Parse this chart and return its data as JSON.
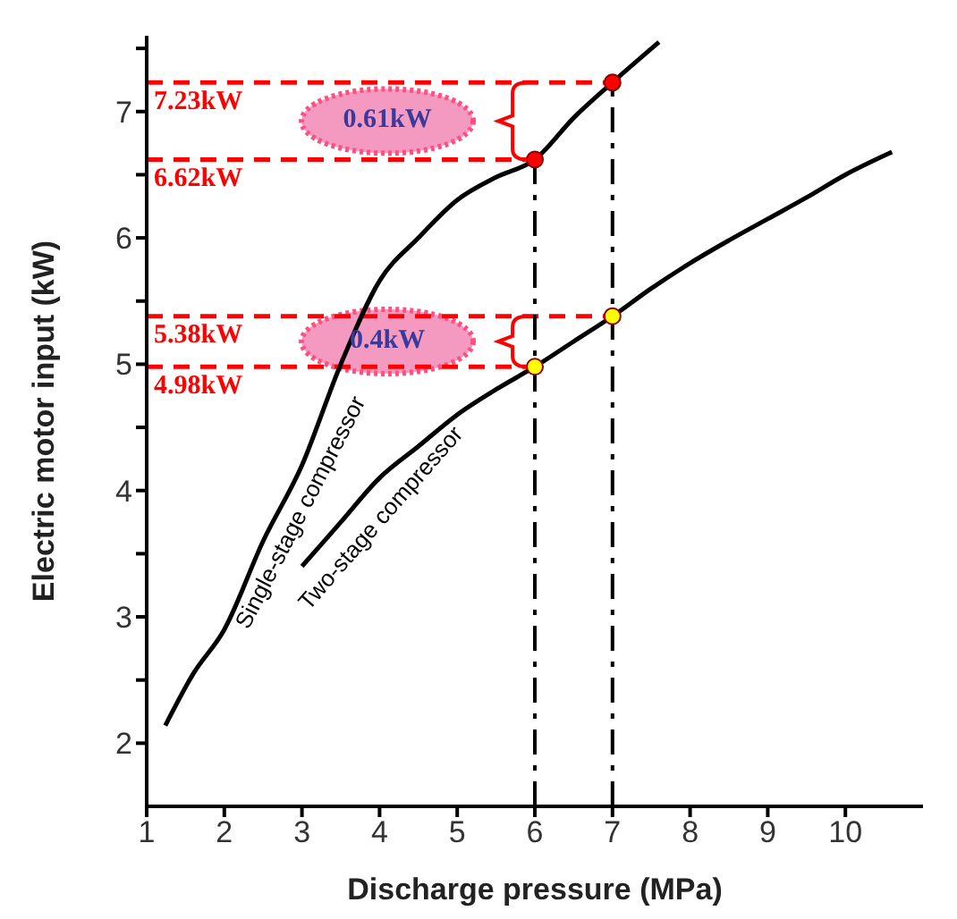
{
  "chart_data": {
    "type": "line",
    "xlabel": "Discharge pressure (MPa)",
    "ylabel": "Electric motor input (kW)",
    "xlim": [
      1,
      11
    ],
    "xticks": [
      1,
      2,
      3,
      4,
      5,
      6,
      7,
      8,
      9,
      10
    ],
    "ylim": [
      1.5,
      7.6
    ],
    "yticks": [
      2,
      {
        "value": 2.5,
        "label": null
      },
      3,
      {
        "value": 3.5,
        "label": null
      },
      4,
      {
        "value": 4.5,
        "label": null
      },
      5,
      {
        "value": 5.5,
        "label": null
      },
      6,
      {
        "value": 6.5,
        "label": null
      },
      7,
      {
        "value": 7.5,
        "label": null
      }
    ],
    "grid": false,
    "legend": false,
    "line_style": "solid",
    "series": [
      {
        "name": "Single-stage compressor",
        "type": "line",
        "color": "#000000",
        "marker": "none",
        "x": [
          1.24,
          1.6,
          2,
          2.5,
          3,
          3.5,
          4,
          4.5,
          5,
          5.5,
          6,
          6.5,
          7,
          7.6
        ],
        "values": [
          2.14,
          2.55,
          2.9,
          3.6,
          4.2,
          5.0,
          5.66,
          6.0,
          6.3,
          6.48,
          6.62,
          6.95,
          7.23,
          7.55
        ]
      },
      {
        "name": "Two-stage compressor",
        "type": "line",
        "color": "#000000",
        "marker": "none",
        "x": [
          3,
          3.5,
          4,
          4.5,
          5,
          5.5,
          6,
          6.5,
          7,
          7.5,
          8,
          8.5,
          9,
          9.5,
          10,
          10.6
        ],
        "values": [
          3.4,
          3.75,
          4.1,
          4.35,
          4.6,
          4.8,
          4.98,
          5.18,
          5.38,
          5.6,
          5.8,
          5.98,
          6.15,
          6.32,
          6.5,
          6.68
        ]
      },
      {
        "type": "scatter",
        "color": "#ff0000",
        "marker": "circle",
        "x": [
          6,
          7
        ],
        "values": [
          6.62,
          7.23
        ]
      },
      {
        "type": "scatter",
        "color": "#ffff00",
        "marker": "circle",
        "x": [
          6,
          7
        ],
        "values": [
          4.98,
          5.38
        ]
      }
    ],
    "ref_lines": [
      {
        "axis": "y",
        "value": 7.23,
        "label": "7.23kW",
        "color": "#ff0000",
        "line_style": "dashed"
      },
      {
        "axis": "y",
        "value": 6.62,
        "label": "6.62kW",
        "color": "#ff0000",
        "line_style": "dashed"
      },
      {
        "axis": "y",
        "value": 5.38,
        "label": "5.38kW",
        "color": "#ff0000",
        "line_style": "dashed"
      },
      {
        "axis": "y",
        "value": 4.98,
        "label": "4.98kW",
        "color": "#ff0000",
        "line_style": "dashed"
      },
      {
        "axis": "x",
        "value": 6,
        "color": "#000000",
        "line_style": "dashed"
      },
      {
        "axis": "x",
        "value": 7,
        "color": "#000000",
        "line_style": "dashed"
      }
    ],
    "annotations": [
      "0.61kW",
      "0.4kW"
    ]
  }
}
